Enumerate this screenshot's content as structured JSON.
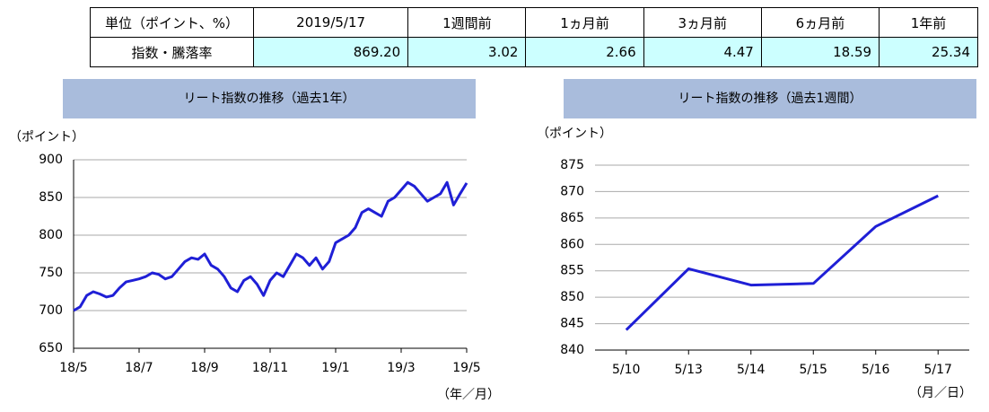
{
  "table": {
    "header": [
      "単位（ポイント、%）",
      "2019/5/17",
      "1週間前",
      "1ヵ月前",
      "3ヵ月前",
      "6ヵ月前",
      "1年前"
    ],
    "rows": [
      [
        "指数・騰落率",
        "869.20",
        "3.02",
        "2.66",
        "4.47",
        "18.59",
        "25.34"
      ]
    ]
  },
  "chart_data": [
    {
      "type": "line",
      "title": "リート指数の推移（過去1年）",
      "y_label": "（ポイント）",
      "x_label": "（年／月）",
      "color": "#1f1fd6",
      "grid": true,
      "categories": [
        "18/5",
        null,
        null,
        null,
        null,
        null,
        null,
        null,
        null,
        null,
        "18/7",
        null,
        null,
        null,
        null,
        null,
        null,
        null,
        null,
        null,
        "18/9",
        null,
        null,
        null,
        null,
        null,
        null,
        null,
        null,
        null,
        "18/11",
        null,
        null,
        null,
        null,
        null,
        null,
        null,
        null,
        null,
        "19/1",
        null,
        null,
        null,
        null,
        null,
        null,
        null,
        null,
        null,
        "19/3",
        null,
        null,
        null,
        null,
        null,
        null,
        null,
        null,
        null,
        "19/5"
      ],
      "values": [
        700,
        705,
        720,
        725,
        722,
        718,
        720,
        730,
        738,
        740,
        742,
        745,
        750,
        748,
        742,
        745,
        755,
        765,
        770,
        768,
        775,
        760,
        755,
        745,
        730,
        725,
        740,
        745,
        735,
        720,
        740,
        750,
        745,
        760,
        775,
        770,
        760,
        770,
        755,
        765,
        790,
        795,
        800,
        810,
        830,
        835,
        830,
        825,
        845,
        850,
        860,
        870,
        865,
        855,
        845,
        850,
        855,
        870,
        840,
        855,
        869.2
      ],
      "ylim": [
        650,
        900
      ],
      "yticks": [
        650,
        700,
        750,
        800,
        850,
        900
      ],
      "edge": true
    },
    {
      "type": "line",
      "title": "リート指数の推移（過去1週間）",
      "y_label": "（ポイント）",
      "x_label": "（月／日）",
      "color": "#1f1fd6",
      "grid": true,
      "categories": [
        "5/10",
        "5/13",
        "5/14",
        "5/15",
        "5/16",
        "5/17"
      ],
      "values": [
        843.8,
        855.4,
        852.3,
        852.6,
        863.4,
        869.2
      ],
      "ylim": [
        840,
        875
      ],
      "yticks": [
        840,
        845,
        850,
        855,
        860,
        865,
        870,
        875
      ],
      "edge": false
    }
  ]
}
